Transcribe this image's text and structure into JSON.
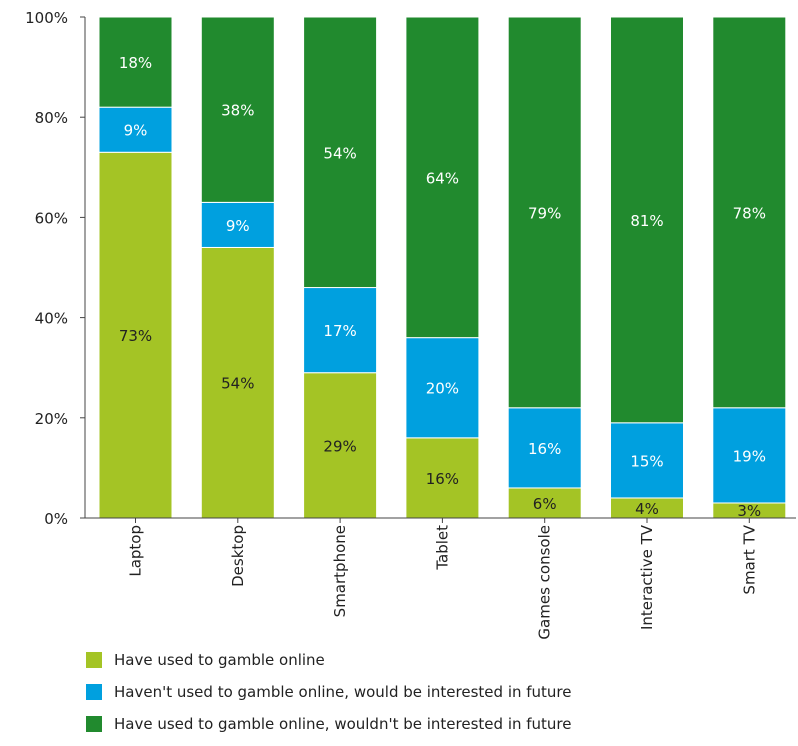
{
  "chart_data": {
    "type": "bar",
    "stacked": true,
    "categories": [
      "Laptop",
      "Desktop",
      "Smartphone",
      "Tablet",
      "Games console",
      "Interactive TV",
      "Smart TV"
    ],
    "series": [
      {
        "name": "Have used to gamble online",
        "color": "#a4c425",
        "values": [
          73,
          54,
          29,
          16,
          6,
          4,
          3
        ],
        "labels": [
          "73%",
          "54%",
          "29%",
          "16%",
          "6%",
          "4%",
          "3%"
        ]
      },
      {
        "name": "Haven't used to gamble online, would be interested in future",
        "color": "#00a0df",
        "values": [
          9,
          9,
          17,
          20,
          16,
          15,
          19
        ],
        "labels": [
          "9%",
          "9%",
          "17%",
          "20%",
          "16%",
          "15%",
          "19%"
        ]
      },
      {
        "name": "Have used to gamble online, wouldn't be interested in future",
        "color": "#218a2e",
        "values": [
          18,
          38,
          54,
          64,
          79,
          81,
          78
        ],
        "labels": [
          "18%",
          "38%",
          "54%",
          "64%",
          "79%",
          "81%",
          "78%"
        ]
      }
    ],
    "ylim": [
      0,
      100
    ],
    "yticks": [
      0,
      20,
      40,
      60,
      80,
      100
    ],
    "ytick_labels": [
      "0%",
      "20%",
      "40%",
      "60%",
      "80%",
      "100%"
    ],
    "grid": false,
    "legend_position": "bottom"
  }
}
